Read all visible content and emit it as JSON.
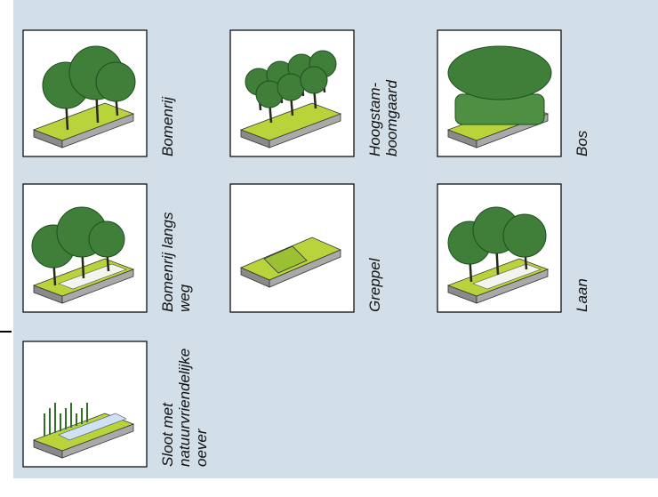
{
  "tiles": [
    {
      "label": [
        "Bomenrij"
      ]
    },
    {
      "label": [
        "Hoogstam-",
        "boomgaard"
      ]
    },
    {
      "label": [
        "Bos"
      ]
    },
    {
      "label": [
        "Bomenrij langs",
        "weg"
      ]
    },
    {
      "label": [
        "Greppel"
      ]
    },
    {
      "label": [
        "Laan"
      ]
    },
    {
      "label": [
        "Sloot met",
        "natuurvriendelijke",
        "oever"
      ]
    }
  ]
}
